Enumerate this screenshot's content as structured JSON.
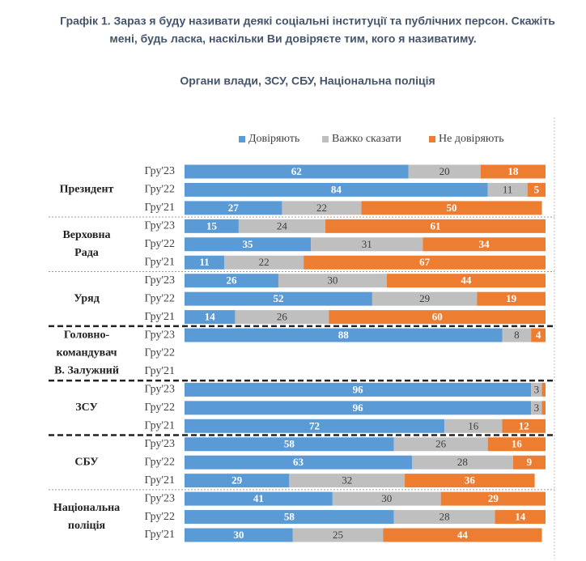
{
  "chart_data": {
    "type": "bar",
    "stacked": true,
    "orientation": "horizontal",
    "title": [
      "Графік 1. Зараз я буду називати деякі соціальні інституції та публічних персон. Скажіть",
      "мені, будь ласка, наскільки Ви довіряєте тим, кого я називатиму."
    ],
    "subtitle": "Органи влади, ЗСУ, СБУ, Національна поліція",
    "xlim": [
      0,
      100
    ],
    "groups": [
      {
        "label": [
          "Президент"
        ],
        "categories": [
          "Гру'23",
          "Гру'22",
          "Гру'21"
        ]
      },
      {
        "label": [
          "Верховна",
          "Рада"
        ],
        "categories": [
          "Гру'23",
          "Гру'22",
          "Гру'21"
        ]
      },
      {
        "label": [
          "Уряд"
        ],
        "categories": [
          "Гру'23",
          "Гру'22",
          "Гру'21"
        ]
      },
      {
        "label": [
          "Головно-",
          "командувач",
          "В. Залужний"
        ],
        "categories": [
          "Гру'23",
          "Гру'22",
          "Гру'21"
        ]
      },
      {
        "label": [
          "ЗСУ"
        ],
        "categories": [
          "Гру'23",
          "Гру'22",
          "Гру'21"
        ]
      },
      {
        "label": [
          "СБУ"
        ],
        "categories": [
          "Гру'23",
          "Гру'22",
          "Гру'21"
        ]
      },
      {
        "label": [
          "Національна",
          "поліція"
        ],
        "categories": [
          "Гру'23",
          "Гру'22",
          "Гру'21"
        ]
      }
    ],
    "series": [
      {
        "name": "Довіряють",
        "color": "#5b9bd5",
        "values": [
          62,
          84,
          27,
          15,
          35,
          11,
          26,
          52,
          14,
          88,
          null,
          null,
          96,
          96,
          72,
          58,
          63,
          29,
          41,
          58,
          30
        ]
      },
      {
        "name": "Важко сказати",
        "color": "#bfbfbf",
        "values": [
          20,
          11,
          22,
          24,
          31,
          22,
          30,
          29,
          26,
          8,
          null,
          null,
          3,
          3,
          16,
          26,
          28,
          32,
          30,
          28,
          25
        ]
      },
      {
        "name": "Не  довіряють",
        "color": "#ed7d31",
        "values": [
          18,
          5,
          50,
          61,
          34,
          67,
          44,
          19,
          60,
          4,
          null,
          null,
          1,
          1,
          12,
          16,
          9,
          36,
          29,
          14,
          44
        ]
      }
    ]
  }
}
